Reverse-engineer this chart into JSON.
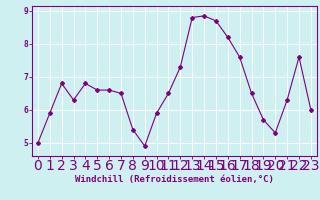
{
  "x": [
    0,
    1,
    2,
    3,
    4,
    5,
    6,
    7,
    8,
    9,
    10,
    11,
    12,
    13,
    14,
    15,
    16,
    17,
    18,
    19,
    20,
    21,
    22,
    23
  ],
  "y": [
    5.0,
    5.9,
    6.8,
    6.3,
    6.8,
    6.6,
    6.6,
    6.5,
    5.4,
    4.9,
    5.9,
    6.5,
    7.3,
    8.8,
    8.85,
    8.7,
    8.2,
    7.6,
    6.5,
    5.7,
    5.3,
    6.3,
    7.6,
    6.0
  ],
  "line_color": "#800080",
  "marker": "D",
  "marker_size": 2,
  "bg_color": "#cff0f0",
  "grid_color": "#ffffff",
  "xlabel": "Windchill (Refroidissement éolien,°C)",
  "xlabel_color": "#800080",
  "tick_color": "#800080",
  "ylim_min": 4.6,
  "ylim_max": 9.15,
  "xlim_min": -0.5,
  "xlim_max": 23.5,
  "yticks": [
    5,
    6,
    7,
    8,
    9
  ],
  "xticks": [
    0,
    1,
    2,
    3,
    4,
    5,
    6,
    7,
    8,
    9,
    10,
    11,
    12,
    13,
    14,
    15,
    16,
    17,
    18,
    19,
    20,
    21,
    22,
    23
  ],
  "spine_color": "#800080",
  "label_fontsize": 6.5,
  "tick_fontsize": 5.8
}
